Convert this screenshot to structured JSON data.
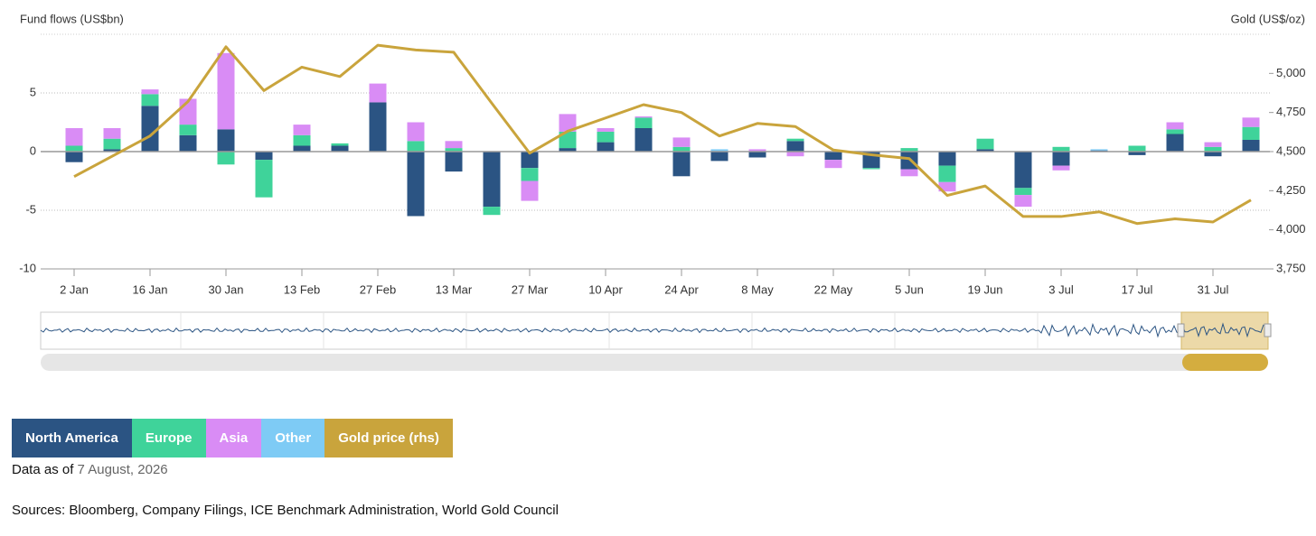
{
  "chart_data": {
    "type": "bar",
    "y_axis_title": "Fund flows (US$bn)",
    "y2_axis_title": "Gold (US$/oz)",
    "categories": [
      "2 Jan",
      null,
      "16 Jan",
      null,
      "30 Jan",
      null,
      "13 Feb",
      null,
      "27 Feb",
      null,
      "13 Mar",
      null,
      "27 Mar",
      null,
      "10 Apr",
      null,
      "24 Apr",
      null,
      "8 May",
      null,
      "22 May",
      null,
      "5 Jun",
      null,
      "19 Jun",
      null,
      "3 Jul",
      null,
      "17 Jul",
      null,
      "31 Jul",
      null
    ],
    "series": [
      {
        "name": "North America",
        "color": "#2b5483",
        "values": [
          -0.9,
          0.2,
          3.9,
          1.4,
          1.9,
          -0.7,
          0.5,
          0.5,
          4.2,
          -5.5,
          -1.7,
          -4.7,
          -1.4,
          0.3,
          0.8,
          2.0,
          -2.1,
          -0.8,
          -0.5,
          0.9,
          -0.7,
          -1.4,
          -1.5,
          -1.2,
          0.2,
          -3.1,
          -1.2,
          0.1,
          -0.3,
          1.5,
          -0.4,
          1.0
        ]
      },
      {
        "name": "Europe",
        "color": "#3fd39a",
        "values": [
          0.5,
          0.9,
          1.0,
          0.9,
          -1.1,
          -3.2,
          0.9,
          0.2,
          0,
          0.9,
          0.3,
          -0.7,
          -1.1,
          1.4,
          0.9,
          0.9,
          0.4,
          0,
          0,
          0.2,
          0,
          -0.1,
          0.3,
          -1.4,
          0.9,
          -0.6,
          0.4,
          0,
          0.5,
          0.4,
          0.4,
          1.1
        ]
      },
      {
        "name": "Asia",
        "color": "#d98cf5",
        "values": [
          1.5,
          0.9,
          0.4,
          2.2,
          6.5,
          0,
          0.9,
          0,
          1.6,
          1.6,
          0.6,
          0,
          -1.7,
          1.5,
          0.3,
          0.1,
          0.8,
          0,
          0.2,
          -0.4,
          -0.7,
          0,
          -0.6,
          -0.8,
          0,
          -1.0,
          -0.4,
          0,
          0,
          0.6,
          0.4,
          0.8
        ]
      },
      {
        "name": "Other",
        "color": "#7ecbf5",
        "values": [
          0,
          0,
          0,
          0,
          0,
          0,
          0,
          0,
          0,
          0,
          0,
          0,
          0,
          0,
          0,
          0,
          0,
          0.2,
          0,
          0,
          0,
          0,
          0,
          0,
          0,
          0,
          0,
          0.1,
          0,
          0,
          0,
          0
        ]
      },
      {
        "name": "Gold price (rhs)",
        "color": "#c9a43c",
        "type": "line",
        "axis": "y2",
        "values": [
          4340,
          4470,
          4600,
          4820,
          5170,
          4890,
          5040,
          4980,
          5180,
          5150,
          5135,
          4810,
          4490,
          4630,
          4715,
          4800,
          4750,
          4600,
          4680,
          4660,
          4510,
          4480,
          4455,
          4220,
          4280,
          4085,
          4085,
          4115,
          4040,
          4070,
          4050,
          4190
        ]
      }
    ],
    "ylim": [
      -10,
      10
    ],
    "yticks": [
      -10,
      -5,
      0,
      5
    ],
    "y2lim": [
      3750,
      5250
    ],
    "y2ticks": [
      {
        "value": 3750,
        "label": "3,750"
      },
      {
        "value": 4000,
        "label": "4,000"
      },
      {
        "value": 4250,
        "label": "4,250"
      },
      {
        "value": 4500,
        "label": "4,500"
      },
      {
        "value": 4750,
        "label": "4,750"
      },
      {
        "value": 5000,
        "label": "5,000"
      }
    ],
    "grid": true,
    "note_label": "Data as of",
    "note_date": "7 August, 2026",
    "source": "Sources: Bloomberg, Company Filings, ICE Benchmark Administration, World Gold Council"
  }
}
